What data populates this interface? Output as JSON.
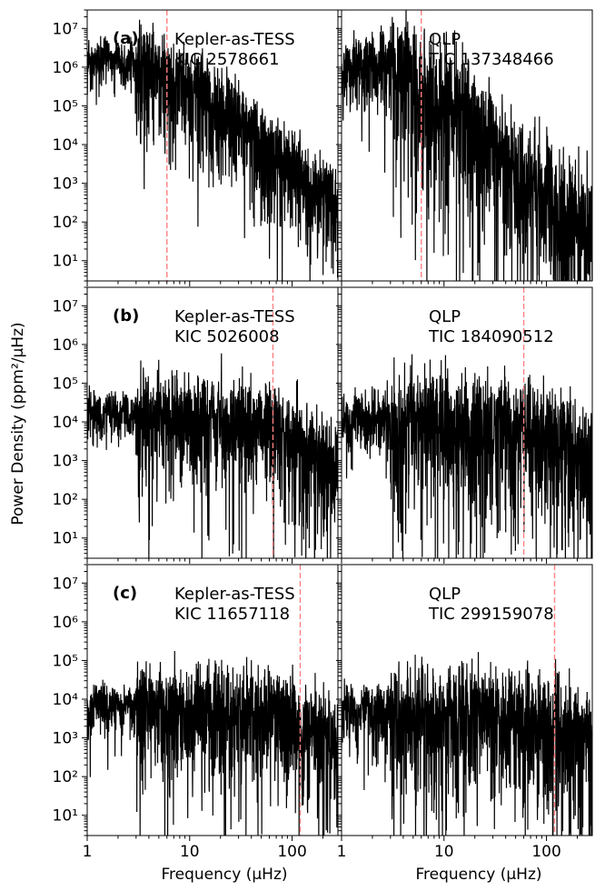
{
  "chart_data": {
    "type": "line",
    "ylabel": "Power Density (ppm²/μHz)",
    "xlabel": "Frequency (μHz)",
    "x_scale": "log",
    "y_scale": "log",
    "xlim": [
      1,
      280
    ],
    "ylim": [
      3,
      30000000
    ],
    "x_ticks": [
      {
        "value": 1,
        "label": "1"
      },
      {
        "value": 10,
        "label": "10"
      },
      {
        "value": 100,
        "label": "100"
      }
    ],
    "y_ticks": [
      {
        "value": 10,
        "label": "10¹"
      },
      {
        "value": 100,
        "label": "10²"
      },
      {
        "value": 1000,
        "label": "10³"
      },
      {
        "value": 10000,
        "label": "10⁴"
      },
      {
        "value": 100000,
        "label": "10⁵"
      },
      {
        "value": 1000000,
        "label": "10⁶"
      },
      {
        "value": 10000000,
        "label": "10⁷"
      }
    ],
    "line_color": "#000000",
    "numax_line_color": "#ff8080",
    "panels": [
      {
        "row": 0,
        "col": 0,
        "row_label": "(a)",
        "source": "Kepler-as-TESS",
        "target": "KIC 2578661",
        "numax": 6.0,
        "peak_power": 2000000,
        "knee_freq": 6,
        "slope": 2.2,
        "noise_floor": 12,
        "variability": 1.4
      },
      {
        "row": 0,
        "col": 1,
        "row_label": "",
        "source": "QLP",
        "target": "TIC 137348466",
        "numax": 6.0,
        "peak_power": 1500000,
        "knee_freq": 5,
        "slope": 2.5,
        "noise_floor": 80,
        "variability": 2.2
      },
      {
        "row": 1,
        "col": 0,
        "row_label": "(b)",
        "source": "Kepler-as-TESS",
        "target": "KIC 5026008",
        "numax": 65.0,
        "peak_power": 20000,
        "knee_freq": 60,
        "slope": 2.0,
        "noise_floor": 15,
        "variability": 1.5
      },
      {
        "row": 1,
        "col": 1,
        "row_label": "",
        "source": "QLP",
        "target": "TIC 184090512",
        "numax": 60.0,
        "peak_power": 15000,
        "knee_freq": 70,
        "slope": 1.3,
        "noise_floor": 40,
        "variability": 2.0
      },
      {
        "row": 2,
        "col": 0,
        "row_label": "(c)",
        "source": "Kepler-as-TESS",
        "target": "KIC 11657118",
        "numax": 120.0,
        "peak_power": 8000,
        "knee_freq": 110,
        "slope": 2.0,
        "noise_floor": 30,
        "variability": 1.6
      },
      {
        "row": 2,
        "col": 1,
        "row_label": "",
        "source": "QLP",
        "target": "TIC 299159078",
        "numax": 120.0,
        "peak_power": 6000,
        "knee_freq": 120,
        "slope": 1.5,
        "noise_floor": 60,
        "variability": 1.8
      }
    ]
  }
}
